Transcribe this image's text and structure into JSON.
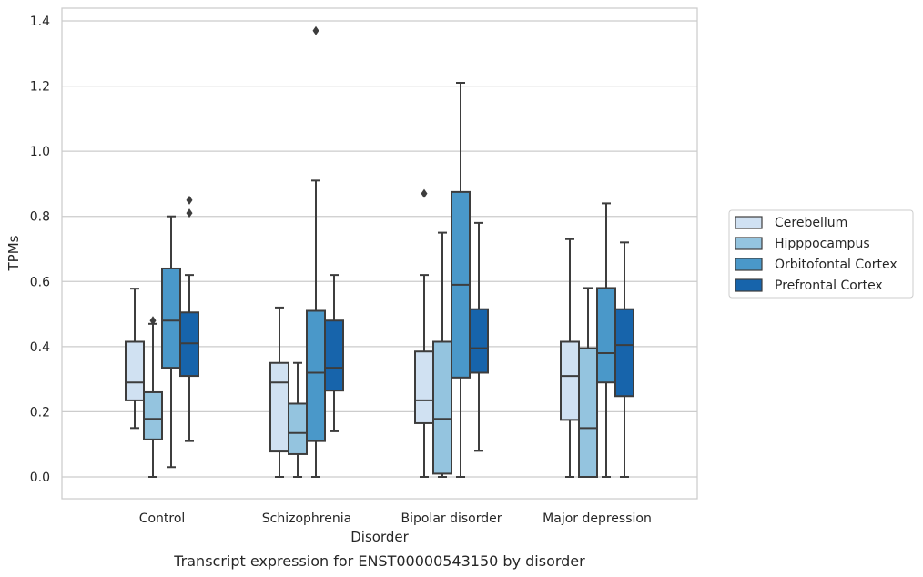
{
  "chart_data": {
    "type": "box",
    "caption": "Transcript expression for ENST00000543150 by disorder",
    "xlabel": "Disorder",
    "ylabel": "TPMs",
    "ylim": [
      -0.065,
      1.44
    ],
    "yticks": [
      "0.0",
      "0.2",
      "0.4",
      "0.6",
      "0.8",
      "1.0",
      "1.2",
      "1.4"
    ],
    "grid": "horizontal",
    "legend_position": "right",
    "categories": [
      "Control",
      "Schizophrenia",
      "Bipolar disorder",
      "Major depression"
    ],
    "series": [
      {
        "name": "Cerebellum",
        "color": "#d0e1f2",
        "boxes": [
          {
            "whisker_low": 0.15,
            "q1": 0.235,
            "median": 0.29,
            "q3": 0.415,
            "whisker_high": 0.578,
            "outliers": []
          },
          {
            "whisker_low": 0.0,
            "q1": 0.078,
            "median": 0.29,
            "q3": 0.35,
            "whisker_high": 0.52,
            "outliers": []
          },
          {
            "whisker_low": 0.0,
            "q1": 0.165,
            "median": 0.235,
            "q3": 0.385,
            "whisker_high": 0.62,
            "outliers": [
              0.87
            ]
          },
          {
            "whisker_low": 0.0,
            "q1": 0.175,
            "median": 0.31,
            "q3": 0.415,
            "whisker_high": 0.73,
            "outliers": []
          }
        ]
      },
      {
        "name": "Hipppocampus",
        "color": "#94c4df",
        "boxes": [
          {
            "whisker_low": 0.0,
            "q1": 0.115,
            "median": 0.178,
            "q3": 0.26,
            "whisker_high": 0.47,
            "outliers": [
              0.48
            ]
          },
          {
            "whisker_low": 0.0,
            "q1": 0.07,
            "median": 0.135,
            "q3": 0.225,
            "whisker_high": 0.35,
            "outliers": []
          },
          {
            "whisker_low": 0.0,
            "q1": 0.01,
            "median": 0.178,
            "q3": 0.415,
            "whisker_high": 0.75,
            "outliers": []
          },
          {
            "whisker_low": 0.0,
            "q1": 0.0,
            "median": 0.15,
            "q3": 0.395,
            "whisker_high": 0.58,
            "outliers": []
          }
        ]
      },
      {
        "name": "Orbitofontal Cortex",
        "color": "#4a98c9",
        "boxes": [
          {
            "whisker_low": 0.03,
            "q1": 0.335,
            "median": 0.48,
            "q3": 0.64,
            "whisker_high": 0.8,
            "outliers": []
          },
          {
            "whisker_low": 0.0,
            "q1": 0.11,
            "median": 0.32,
            "q3": 0.51,
            "whisker_high": 0.91,
            "outliers": [
              1.37
            ]
          },
          {
            "whisker_low": 0.0,
            "q1": 0.305,
            "median": 0.59,
            "q3": 0.875,
            "whisker_high": 1.21,
            "outliers": []
          },
          {
            "whisker_low": 0.0,
            "q1": 0.29,
            "median": 0.38,
            "q3": 0.58,
            "whisker_high": 0.84,
            "outliers": []
          }
        ]
      },
      {
        "name": "Prefrontal Cortex",
        "color": "#1764ab",
        "boxes": [
          {
            "whisker_low": 0.11,
            "q1": 0.31,
            "median": 0.41,
            "q3": 0.505,
            "whisker_high": 0.62,
            "outliers": [
              0.81,
              0.85
            ]
          },
          {
            "whisker_low": 0.14,
            "q1": 0.265,
            "median": 0.335,
            "q3": 0.48,
            "whisker_high": 0.62,
            "outliers": []
          },
          {
            "whisker_low": 0.08,
            "q1": 0.32,
            "median": 0.395,
            "q3": 0.515,
            "whisker_high": 0.78,
            "outliers": []
          },
          {
            "whisker_low": 0.0,
            "q1": 0.248,
            "median": 0.405,
            "q3": 0.515,
            "whisker_high": 0.72,
            "outliers": []
          }
        ]
      }
    ]
  }
}
